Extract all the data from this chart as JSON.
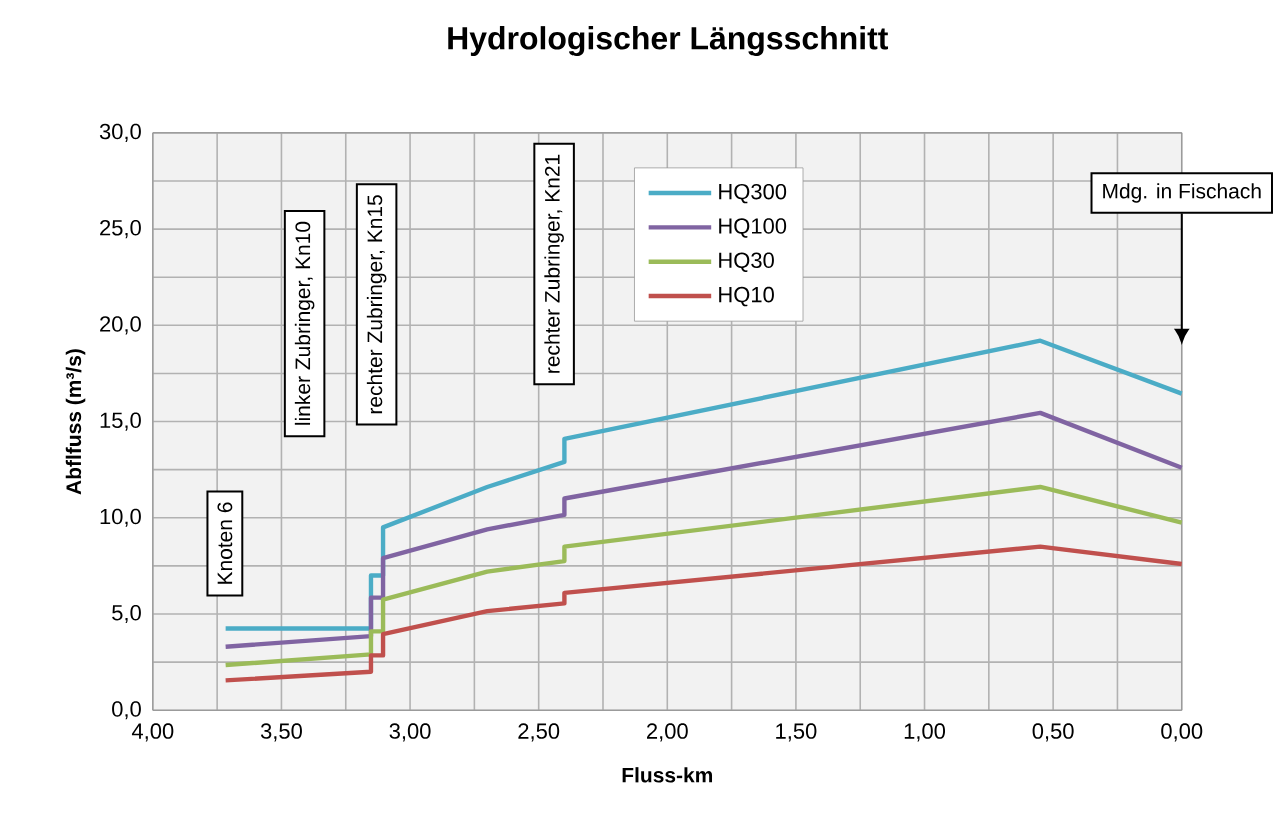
{
  "chart_data": {
    "type": "line",
    "title": "Hydrologischer Längsschnitt",
    "xlabel": "Fluss-km",
    "ylabel": "Abflfuss (m³/s)",
    "xlim": [
      4,
      0
    ],
    "ylim": [
      0,
      30
    ],
    "xticks": [
      {
        "value": 4,
        "label": "4,00"
      },
      {
        "value": 3.75,
        "label": null
      },
      {
        "value": 3.5,
        "label": "3,50"
      },
      {
        "value": 3.25,
        "label": null
      },
      {
        "value": 3,
        "label": "3,00"
      },
      {
        "value": 2.75,
        "label": null
      },
      {
        "value": 2.5,
        "label": "2,50"
      },
      {
        "value": 2.25,
        "label": null
      },
      {
        "value": 2,
        "label": "2,00"
      },
      {
        "value": 1.75,
        "label": null
      },
      {
        "value": 1.5,
        "label": "1,50"
      },
      {
        "value": 1.25,
        "label": null
      },
      {
        "value": 1,
        "label": "1,00"
      },
      {
        "value": 0.75,
        "label": null
      },
      {
        "value": 0.5,
        "label": "0,50"
      },
      {
        "value": 0.25,
        "label": null
      },
      {
        "value": 0,
        "label": "0,00"
      }
    ],
    "yticks": [
      {
        "value": 0,
        "label": "0,0"
      },
      {
        "value": 2.5,
        "label": null
      },
      {
        "value": 5,
        "label": "5,0"
      },
      {
        "value": 7.5,
        "label": null
      },
      {
        "value": 10,
        "label": "10,0"
      },
      {
        "value": 12.5,
        "label": null
      },
      {
        "value": 15,
        "label": "15,0"
      },
      {
        "value": 17.5,
        "label": null
      },
      {
        "value": 20,
        "label": "20,0"
      },
      {
        "value": 22.5,
        "label": null
      },
      {
        "value": 25,
        "label": "25,0"
      },
      {
        "value": 27.5,
        "label": null
      },
      {
        "value": 30,
        "label": "30,0"
      }
    ],
    "grid": true,
    "legend": "top",
    "marker": "none",
    "line_style": "solid",
    "series": [
      {
        "name": "HQ300",
        "color": "#4bacc6",
        "x": [
          3.717,
          3.152,
          3.152,
          3.105,
          3.105,
          2.7,
          2.4,
          2.4,
          0.55,
          0
        ],
        "values": [
          4.25,
          4.25,
          7.0,
          7.0,
          9.5,
          11.6,
          12.9,
          14.1,
          19.2,
          16.45
        ]
      },
      {
        "name": "HQ100",
        "color": "#8064a2",
        "x": [
          3.717,
          3.152,
          3.152,
          3.105,
          3.105,
          2.7,
          2.4,
          2.4,
          0.55,
          0
        ],
        "values": [
          3.3,
          3.85,
          5.85,
          5.85,
          7.9,
          9.4,
          10.15,
          11.0,
          15.45,
          12.6
        ]
      },
      {
        "name": "HQ30",
        "color": "#9bbb59",
        "x": [
          3.717,
          3.152,
          3.152,
          3.105,
          3.105,
          2.7,
          2.4,
          2.4,
          0.55,
          0
        ],
        "values": [
          2.35,
          2.9,
          4.1,
          4.1,
          5.75,
          7.2,
          7.75,
          8.5,
          11.6,
          9.75
        ]
      },
      {
        "name": "HQ10",
        "color": "#c0504d",
        "x": [
          3.717,
          3.152,
          3.152,
          3.105,
          3.105,
          2.7,
          2.4,
          2.4,
          0.55,
          0
        ],
        "values": [
          1.55,
          2.0,
          2.85,
          2.85,
          3.95,
          5.15,
          5.55,
          6.1,
          8.5,
          7.6
        ]
      }
    ],
    "annotations": [
      "Knoten 6",
      "linker Zubringer, Kn10",
      "rechter Zubringer, Kn15",
      "rechter Zubringer, Kn21",
      "Mdg. in Fischach"
    ]
  }
}
